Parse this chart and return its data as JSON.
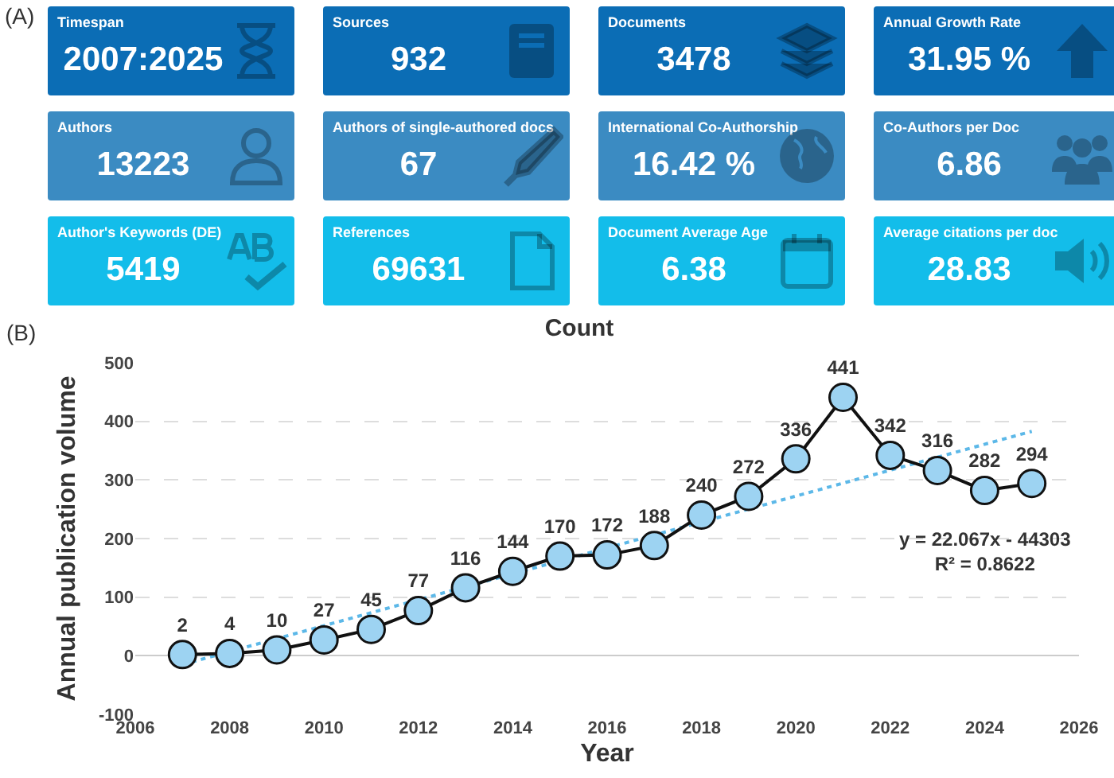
{
  "chart_data": [
    {
      "type": "other",
      "title": "(A)",
      "categories": [
        "Timespan",
        "Sources",
        "Documents",
        "Annual Growth Rate",
        "Authors",
        "Authors of single-authored docs",
        "International Co-Authorship",
        "Co-Authors per Doc",
        "Author's Keywords (DE)",
        "References",
        "Document Average Age",
        "Average citations per doc"
      ],
      "value_labels": [
        "2007:2025",
        "932",
        "3478",
        "31.95 %",
        "13223",
        "67",
        "16.42 %",
        "6.86",
        "5419",
        "69631",
        "6.38",
        "28.83"
      ],
      "colors": [
        "#0b6db5",
        "#0b6db5",
        "#0b6db5",
        "#0b6db5",
        "#3b8bc2",
        "#3b8bc2",
        "#3b8bc2",
        "#3b8bc2",
        "#13bdea",
        "#13bdea",
        "#13bdea",
        "#13bdea"
      ]
    },
    {
      "type": "line",
      "title": "Count",
      "xlabel": "Year",
      "ylabel": "Annual publication volume",
      "x": [
        2007,
        2008,
        2009,
        2010,
        2011,
        2012,
        2013,
        2014,
        2015,
        2016,
        2017,
        2018,
        2019,
        2020,
        2021,
        2022,
        2023,
        2024,
        2025
      ],
      "series": [
        {
          "color": "#9dd3f2",
          "values": [
            2,
            4,
            10,
            27,
            45,
            77,
            116,
            144,
            170,
            172,
            188,
            240,
            272,
            336,
            441,
            342,
            316,
            282,
            294
          ],
          "value_labels": [
            "2",
            "4",
            "10",
            "27",
            "45",
            "77",
            "116",
            "144",
            "170",
            "172",
            "188",
            "240",
            "272",
            "336",
            "441",
            "342",
            "316",
            "282",
            "294"
          ]
        },
        {
          "type": "line",
          "color": "#5cb8e8",
          "line_style": "dotted",
          "marker": "none",
          "x": [
            2007,
            2025
          ],
          "values": [
            -15,
            383
          ]
        }
      ],
      "marker": "circle",
      "line_style": "solid",
      "xlim": [
        2006,
        2026
      ],
      "xticks": [
        2006,
        2008,
        2010,
        2012,
        2014,
        2016,
        2018,
        2020,
        2022,
        2024,
        2026
      ],
      "ylim": [
        -100,
        500
      ],
      "yticks": [
        -100,
        0,
        100,
        200,
        300,
        400,
        500
      ],
      "grid": "y",
      "annotations": [
        "(B)",
        "y = 22.067x - 44303\nR² = 0.8622"
      ]
    }
  ]
}
